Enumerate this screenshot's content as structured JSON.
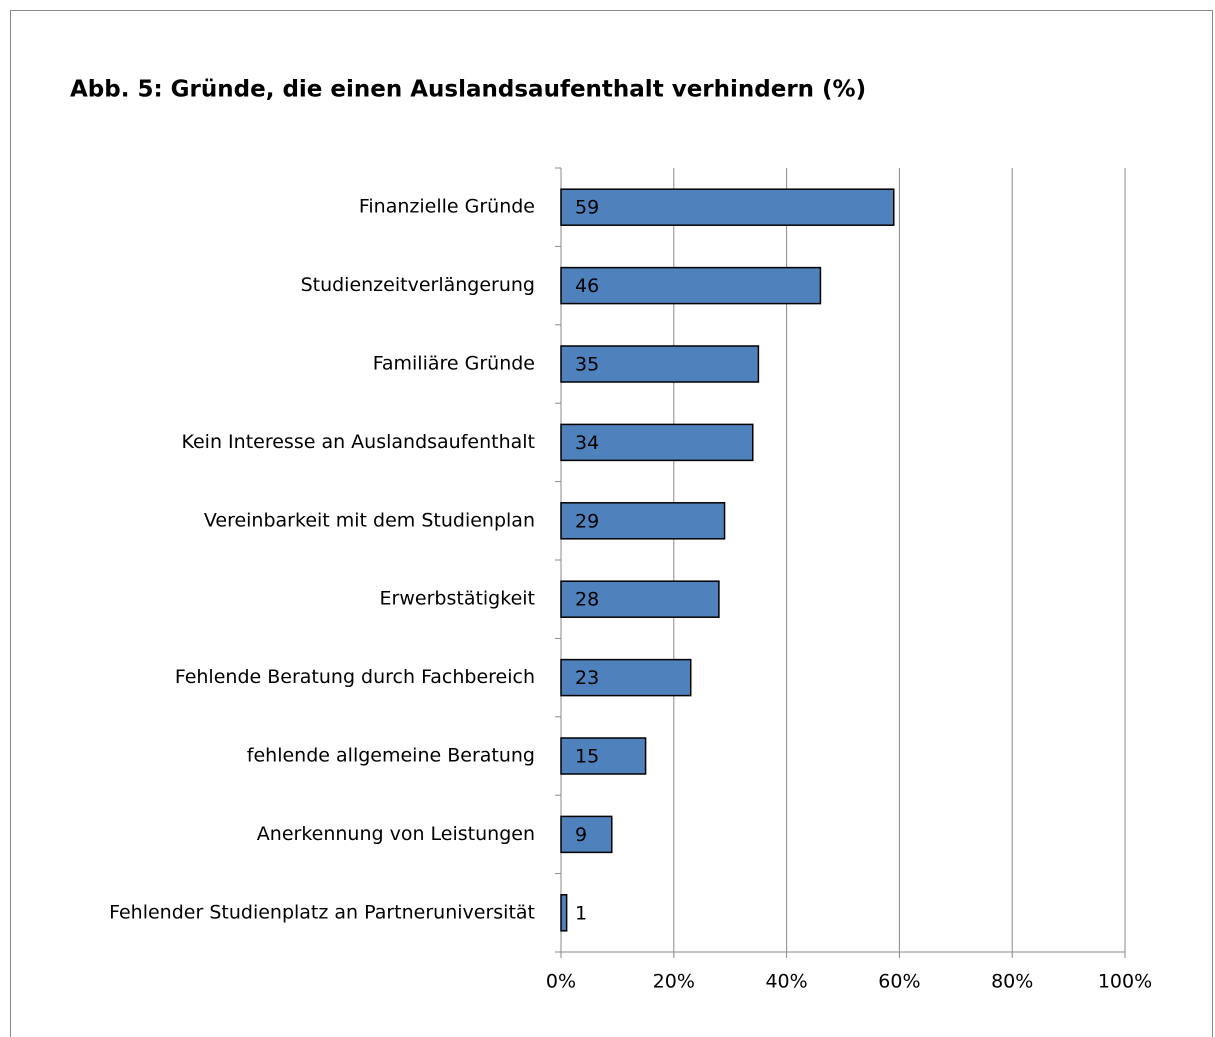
{
  "chart_data": {
    "type": "barh",
    "title": "Abb. 5: Gründe, die einen Auslandsaufenthalt verhindern (%)",
    "categories": [
      "Finanzielle Gründe",
      "Studienzeitverlängerung",
      "Familiäre Gründe",
      "Kein Interesse an Auslandsaufenthalt",
      "Vereinbarkeit mit dem Studienplan",
      "Erwerbstätigkeit",
      "Fehlende Beratung durch Fachbereich",
      "fehlende allgemeine Beratung",
      "Anerkennung von Leistungen",
      "Fehlender Studienplatz an Partneruniversität"
    ],
    "values": [
      59,
      46,
      35,
      34,
      29,
      28,
      23,
      15,
      9,
      1
    ],
    "color": "#4f81bd",
    "xlim": [
      0,
      100
    ],
    "xticks": [
      {
        "value": 0,
        "label": "0%"
      },
      {
        "value": 20,
        "label": "20%"
      },
      {
        "value": 40,
        "label": "40%"
      },
      {
        "value": 60,
        "label": "60%"
      },
      {
        "value": 80,
        "label": "80%"
      },
      {
        "value": 100,
        "label": "100%"
      }
    ],
    "grid": true
  }
}
